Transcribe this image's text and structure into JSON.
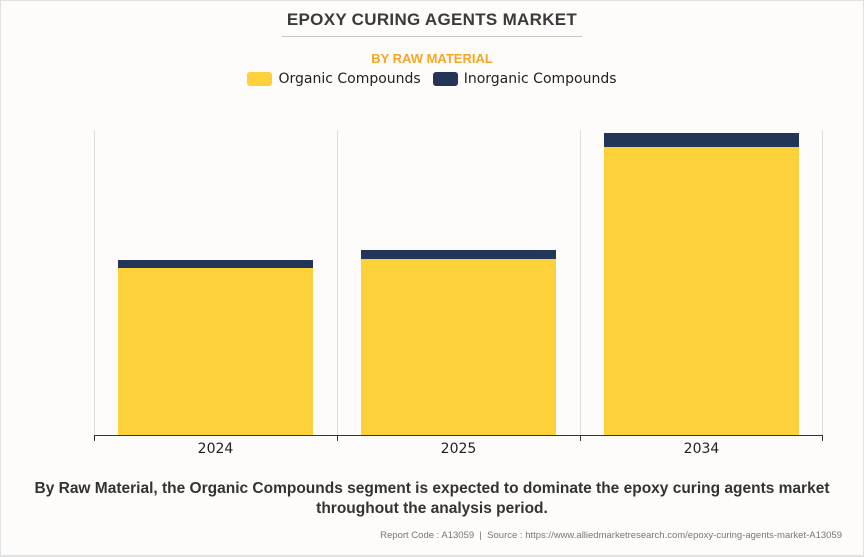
{
  "header": {
    "title": "EPOXY CURING AGENTS MARKET",
    "subtitle": "BY RAW MATERIAL"
  },
  "legend": [
    {
      "label": "Organic Compounds",
      "color": "#fdd13a"
    },
    {
      "label": "Inorganic Compounds",
      "color": "#243657"
    }
  ],
  "chart_data": {
    "type": "bar",
    "stacked": true,
    "title": "EPOXY CURING AGENTS MARKET",
    "subtitle": "BY RAW MATERIAL",
    "categories": [
      "2024",
      "2025",
      "2034"
    ],
    "series": [
      {
        "name": "Organic Compounds",
        "color": "#fdd13a",
        "values": [
          54.8,
          57.7,
          94.4
        ]
      },
      {
        "name": "Inorganic Compounds",
        "color": "#243657",
        "values": [
          2.6,
          3.0,
          4.6
        ]
      }
    ],
    "xlabel": "",
    "ylabel": "",
    "ylim": [
      0,
      100
    ],
    "y_axis_visible": false,
    "grid": "vertical category separators",
    "legend_position": "top",
    "note": "Values are relative bar heights (no y-axis scale shown)"
  },
  "footer": {
    "caption_line1": "By Raw Material, the Organic Compounds segment is expected to dominate the epoxy curing agents market",
    "caption_line2": "throughout the analysis period.",
    "source": "Report Code : A13059  |  Source : https://www.alliedmarketresearch.com/epoxy-curing-agents-market-A13059"
  }
}
